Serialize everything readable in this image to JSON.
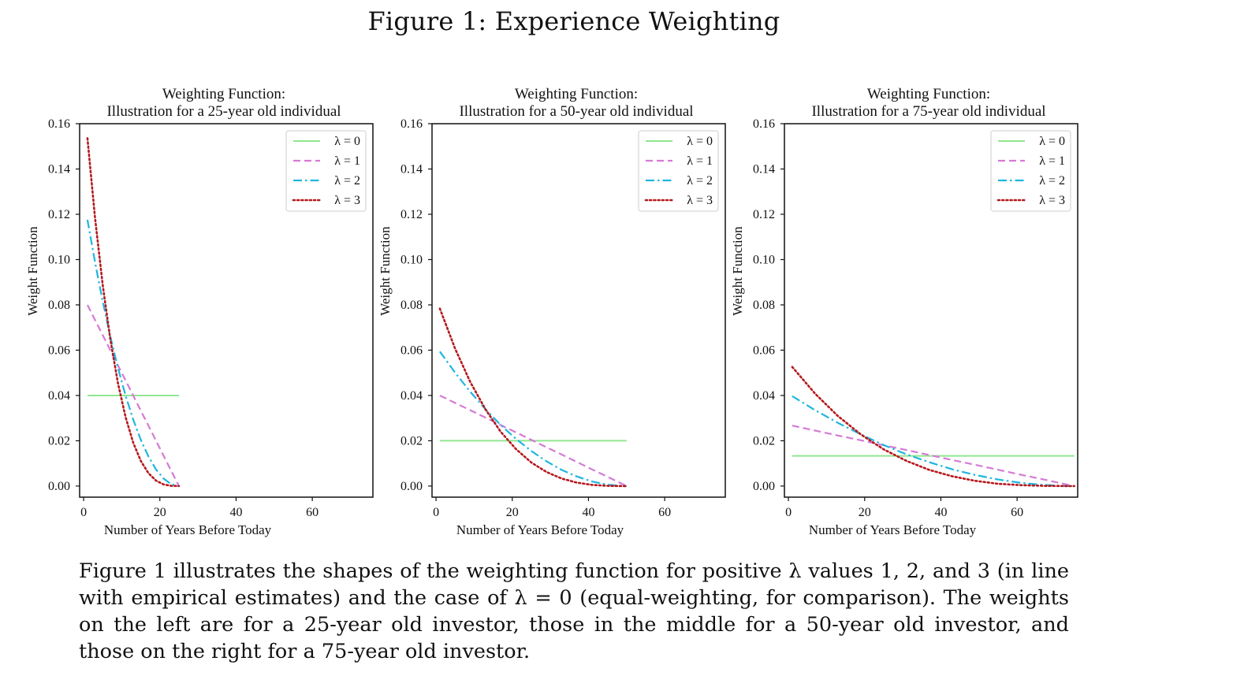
{
  "figure": {
    "title": "Figure 1: Experience Weighting",
    "caption": "Figure 1 illustrates the shapes of the weighting function for positive λ values 1, 2, and 3 (in line with empirical estimates) and the case of λ = 0 (equal-weighting, for comparison). The weights on the left are for a 25-year old investor, those in the middle for a 50-year old investor, and those on the right for a 75-year old investor."
  },
  "chart_data": [
    {
      "type": "line",
      "title": [
        "Weighting Function:",
        "Illustration for a 25-year old individual"
      ],
      "xlabel": "Number of Years Before Today",
      "ylabel": "Weight Function",
      "xlim": [
        -1.05,
        75.9
      ],
      "ylim": [
        -0.0049,
        0.16
      ],
      "xticks": [
        0,
        20,
        40,
        60
      ],
      "yticks": [
        0.0,
        0.02,
        0.04,
        0.06,
        0.08,
        0.1,
        0.12,
        0.14,
        0.16
      ],
      "ytick_labels": [
        "0.00",
        "0.02",
        "0.04",
        "0.06",
        "0.08",
        "0.10",
        "0.12",
        "0.14",
        "0.16"
      ],
      "grid": false,
      "legend_position": "top-right",
      "x": [
        1,
        3,
        5,
        7,
        9,
        11,
        13,
        15,
        17,
        19,
        21,
        23,
        25
      ],
      "series": [
        {
          "name": "λ = 0",
          "style": "solid",
          "color": "#90e690",
          "values": [
            0.04,
            0.04,
            0.04,
            0.04,
            0.04,
            0.04,
            0.04,
            0.04,
            0.04,
            0.04,
            0.04,
            0.04,
            0.04
          ]
        },
        {
          "name": "λ = 1",
          "style": "dashed",
          "color": "#d67ad6",
          "values": [
            0.08,
            0.0733,
            0.0667,
            0.06,
            0.0533,
            0.0467,
            0.04,
            0.0333,
            0.0267,
            0.02,
            0.0133,
            0.0067,
            0.0
          ]
        },
        {
          "name": "λ = 2",
          "style": "dashdot",
          "color": "#1fb6e0",
          "values": [
            0.1176,
            0.0988,
            0.0816,
            0.0661,
            0.0522,
            0.04,
            0.0294,
            0.0204,
            0.0131,
            0.0073,
            0.0033,
            0.0008,
            0.0
          ]
        },
        {
          "name": "λ = 3",
          "style": "dotted",
          "color": "#b5191e",
          "values": [
            0.1536,
            0.1183,
            0.0889,
            0.0648,
            0.0455,
            0.0305,
            0.0192,
            0.0111,
            0.0057,
            0.0024,
            0.0007,
            0.0001,
            0.0
          ]
        }
      ]
    },
    {
      "type": "line",
      "title": [
        "Weighting Function:",
        "Illustration for a 50-year old individual"
      ],
      "xlabel": "Number of Years Before Today",
      "ylabel": "Weight Function",
      "xlim": [
        -1.05,
        75.9
      ],
      "ylim": [
        -0.0049,
        0.16
      ],
      "xticks": [
        0,
        20,
        40,
        60
      ],
      "yticks": [
        0.0,
        0.02,
        0.04,
        0.06,
        0.08,
        0.1,
        0.12,
        0.14,
        0.16
      ],
      "ytick_labels": [
        "0.00",
        "0.02",
        "0.04",
        "0.06",
        "0.08",
        "0.10",
        "0.12",
        "0.14",
        "0.16"
      ],
      "grid": false,
      "legend_position": "top-right",
      "x": [
        1,
        5,
        9,
        13,
        17,
        21,
        25,
        29,
        33,
        37,
        41,
        45,
        49,
        50
      ],
      "series": [
        {
          "name": "λ = 0",
          "style": "solid",
          "color": "#90e690",
          "values": [
            0.02,
            0.02,
            0.02,
            0.02,
            0.02,
            0.02,
            0.02,
            0.02,
            0.02,
            0.02,
            0.02,
            0.02,
            0.02,
            0.02
          ]
        },
        {
          "name": "λ = 1",
          "style": "dashed",
          "color": "#d67ad6",
          "values": [
            0.04,
            0.0367,
            0.0335,
            0.0302,
            0.0269,
            0.0237,
            0.0204,
            0.0171,
            0.0139,
            0.0106,
            0.0073,
            0.0041,
            0.0008,
            0.0
          ]
        },
        {
          "name": "λ = 2",
          "style": "dashdot",
          "color": "#1fb6e0",
          "values": [
            0.0594,
            0.0501,
            0.0416,
            0.0339,
            0.0269,
            0.0208,
            0.0155,
            0.0109,
            0.0071,
            0.0042,
            0.002,
            0.0006,
            0.0,
            0.0
          ]
        },
        {
          "name": "λ = 3",
          "style": "dotted",
          "color": "#b5191e",
          "values": [
            0.0784,
            0.0607,
            0.0459,
            0.0338,
            0.0239,
            0.0163,
            0.0104,
            0.0062,
            0.0033,
            0.0015,
            0.0005,
            0.0001,
            0.0,
            0.0
          ]
        }
      ]
    },
    {
      "type": "line",
      "title": [
        "Weighting Function:",
        "Illustration for a 75-year old individual"
      ],
      "xlabel": "Number of Years Before Today",
      "ylabel": "Weight Function",
      "xlim": [
        -1.05,
        75.9
      ],
      "ylim": [
        -0.0049,
        0.16
      ],
      "xticks": [
        0,
        20,
        40,
        60
      ],
      "yticks": [
        0.0,
        0.02,
        0.04,
        0.06,
        0.08,
        0.1,
        0.12,
        0.14,
        0.16
      ],
      "ytick_labels": [
        "0.00",
        "0.02",
        "0.04",
        "0.06",
        "0.08",
        "0.10",
        "0.12",
        "0.14",
        "0.16"
      ],
      "grid": false,
      "legend_position": "top-right",
      "x": [
        1,
        7,
        13,
        19,
        25,
        31,
        37,
        43,
        49,
        55,
        61,
        67,
        73,
        75
      ],
      "series": [
        {
          "name": "λ = 0",
          "style": "solid",
          "color": "#90e690",
          "values": [
            0.0133,
            0.0133,
            0.0133,
            0.0133,
            0.0133,
            0.0133,
            0.0133,
            0.0133,
            0.0133,
            0.0133,
            0.0133,
            0.0133,
            0.0133,
            0.0133
          ]
        },
        {
          "name": "λ = 1",
          "style": "dashed",
          "color": "#d67ad6",
          "values": [
            0.0267,
            0.0245,
            0.0223,
            0.0202,
            0.018,
            0.0159,
            0.0137,
            0.0115,
            0.0094,
            0.0072,
            0.005,
            0.0029,
            0.0007,
            0.0
          ]
        },
        {
          "name": "λ = 2",
          "style": "dashdot",
          "color": "#1fb6e0",
          "values": [
            0.0397,
            0.0335,
            0.0279,
            0.0228,
            0.0181,
            0.014,
            0.0105,
            0.0074,
            0.0049,
            0.0029,
            0.0014,
            0.0005,
            0.0,
            0.0
          ]
        },
        {
          "name": "λ = 3",
          "style": "dotted",
          "color": "#b5191e",
          "values": [
            0.0526,
            0.0408,
            0.0309,
            0.0228,
            0.0162,
            0.0111,
            0.0071,
            0.0043,
            0.0023,
            0.001,
            0.0004,
            0.0001,
            0.0,
            0.0
          ]
        }
      ]
    }
  ]
}
